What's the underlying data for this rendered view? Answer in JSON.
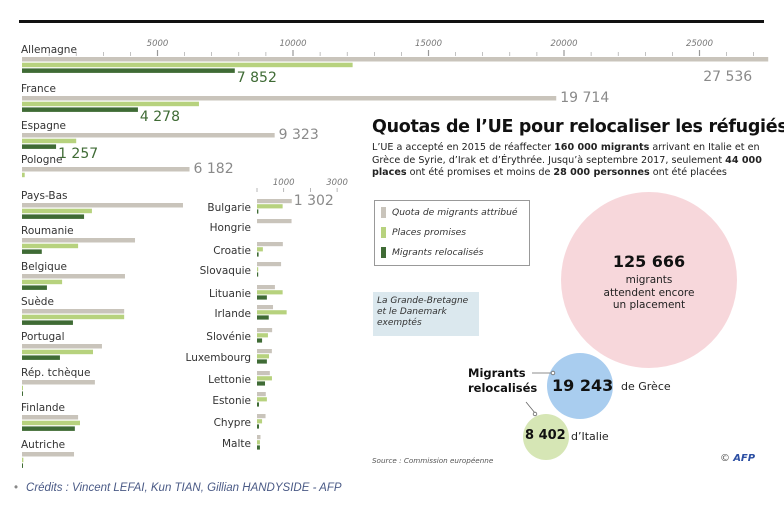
{
  "colors": {
    "quota": "#c9c4bb",
    "promised": "#b7d27e",
    "relocated": "#3f6b35",
    "waiting_bubble": "#f7d7db",
    "greece_bubble": "#a9cdef",
    "italy_bubble": "#d6e6b5",
    "exempt_box": "#dbe8ee",
    "afp_blue": "#2c4fa3"
  },
  "title": "Quotas de l’UE pour relocaliser les réfugiés",
  "description": {
    "p1": "L’UE a accepté en 2015 de réaffecter ",
    "b1": "160 000 migrants",
    "p2": " arrivant en Italie et en Grèce de Syrie, d’Irak et d’Érythrée. Jusqu’à septembre 2017, seulement ",
    "b2": "44 000 places",
    "p3": " ont été promises et moins de ",
    "b3": "28 000 personnes",
    "p4": " ont été placées"
  },
  "exempt_note": "La Grande-Bretagne et le Danemark exemptés",
  "bubbles": {
    "waiting": {
      "value": "125 666",
      "label_line1": "migrants",
      "label_line2": "attendent encore",
      "label_line3": "un placement"
    },
    "relocated_label_line1": "Migrants",
    "relocated_label_line2": "relocalisés",
    "greece": {
      "value": "19 243",
      "label": "de Grèce"
    },
    "italy": {
      "value": "8 402",
      "label": "d’Italie"
    }
  },
  "source": "Source : Commission européenne",
  "copyright": "©",
  "afp_logo": "AFP",
  "credits": "Crédits : Vincent LEFAI, Kun TIAN, Gillian HANDYSIDE - AFP",
  "chart_data": [
    {
      "type": "bar",
      "orientation": "horizontal",
      "title": "",
      "xlim": [
        0,
        27536
      ],
      "ticks": [
        {
          "value": 5000,
          "label": "5000"
        },
        {
          "value": 10000,
          "label": "10000"
        },
        {
          "value": 15000,
          "label": "15000"
        },
        {
          "value": 20000,
          "label": "20000"
        },
        {
          "value": 25000,
          "label": "25000"
        }
      ],
      "minor_tick_step": 1000,
      "legend": {
        "placement": "right",
        "entries": [
          "Quota de migrants attribué",
          "Places promises",
          "Migrants relocalisés"
        ]
      },
      "categories": [
        "Allemagne",
        "France",
        "Espagne",
        "Pologne",
        "Pays-Bas",
        "Roumanie",
        "Belgique",
        "Suède",
        "Portugal",
        "Rép. tchèque",
        "Finlande",
        "Autriche"
      ],
      "series": [
        {
          "name": "Quota de migrants attribué",
          "values": [
            27536,
            19714,
            9323,
            6182,
            5940,
            4170,
            3800,
            3770,
            2950,
            2690,
            2070,
            1920
          ]
        },
        {
          "name": "Places promises",
          "values": [
            12200,
            6530,
            2000,
            100,
            2580,
            2070,
            1480,
            3770,
            2620,
            30,
            2140,
            50
          ]
        },
        {
          "name": "Migrants relocalisés",
          "values": [
            7852,
            4278,
            1257,
            0,
            2290,
            730,
            920,
            1880,
            1400,
            12,
            1950,
            15
          ]
        }
      ],
      "data_labels": [
        {
          "category": "Allemagne",
          "series": "Quota de migrants attribué",
          "text": "27 536"
        },
        {
          "category": "Allemagne",
          "series": "Migrants relocalisés",
          "text": "7 852"
        },
        {
          "category": "France",
          "series": "Quota de migrants attribué",
          "text": "19 714"
        },
        {
          "category": "France",
          "series": "Migrants relocalisés",
          "text": "4 278"
        },
        {
          "category": "Espagne",
          "series": "Quota de migrants attribué",
          "text": "9 323"
        },
        {
          "category": "Espagne",
          "series": "Migrants relocalisés",
          "text": "1 257"
        },
        {
          "category": "Pologne",
          "series": "Quota de migrants attribué",
          "text": "6 182"
        }
      ]
    },
    {
      "type": "bar",
      "orientation": "horizontal",
      "title": "",
      "xlim": [
        0,
        3000
      ],
      "ticks": [
        {
          "value": 0,
          "label": ""
        },
        {
          "value": 1000,
          "label": "1000"
        },
        {
          "value": 2000,
          "label": ""
        },
        {
          "value": 3000,
          "label": "3000"
        }
      ],
      "categories": [
        "Bulgarie",
        "Hongrie",
        "Croatie",
        "Slovaquie",
        "Lituanie",
        "Irlande",
        "Slovénie",
        "Luxembourg",
        "Lettonie",
        "Estonie",
        "Chypre",
        "Malte"
      ],
      "series": [
        {
          "name": "Quota de migrants attribué",
          "values": [
            1302,
            1294,
            968,
            902,
            671,
            600,
            567,
            557,
            481,
            329,
            320,
            131
          ]
        },
        {
          "name": "Places promises",
          "values": [
            960,
            0,
            220,
            30,
            960,
            1110,
            410,
            450,
            560,
            370,
            190,
            110
          ]
        },
        {
          "name": "Migrants relocalisés",
          "values": [
            50,
            0,
            60,
            16,
            370,
            440,
            190,
            370,
            300,
            75,
            75,
            110
          ]
        }
      ],
      "data_labels": [
        {
          "category": "Bulgarie",
          "series": "Quota de migrants attribué",
          "text": "1 302"
        }
      ]
    }
  ]
}
